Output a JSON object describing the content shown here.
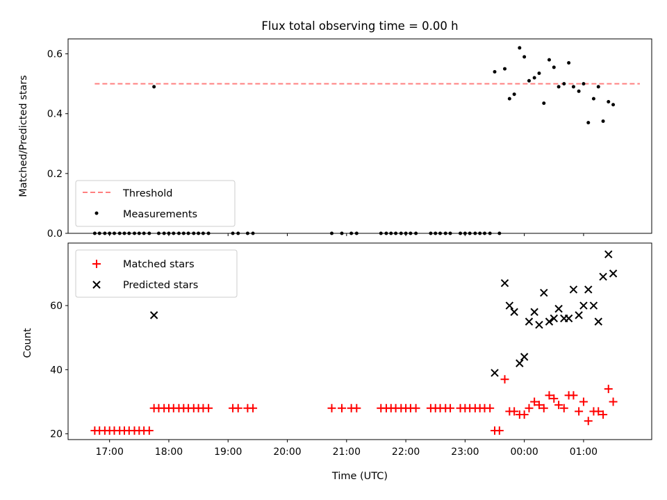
{
  "chart_data": [
    {
      "type": "scatter",
      "title": "Flux total observing time = 0.00 h",
      "xlabel": "",
      "ylabel": "Matched/Predicted stars",
      "ylim": [
        0,
        0.65
      ],
      "yticks": [
        "0.0",
        "0.2",
        "0.4",
        "0.6"
      ],
      "xlim_hours": [
        16.3,
        26.15
      ],
      "legend_position": "lower-left",
      "threshold": {
        "name": "Threshold",
        "value": 0.5,
        "x_start": 16.75,
        "x_end": 25.95,
        "color": "#ff7f7f"
      },
      "series": [
        {
          "name": "Measurements",
          "color": "#000000",
          "x": [
            16.75,
            16.83,
            16.92,
            17.0,
            17.08,
            17.17,
            17.25,
            17.33,
            17.42,
            17.5,
            17.58,
            17.67,
            17.75,
            17.83,
            17.92,
            18.0,
            18.08,
            18.17,
            18.25,
            18.33,
            18.42,
            18.5,
            18.58,
            18.67,
            19.08,
            19.17,
            19.33,
            19.42,
            20.75,
            20.92,
            21.08,
            21.17,
            21.58,
            21.67,
            21.75,
            21.83,
            21.92,
            22.0,
            22.08,
            22.17,
            22.42,
            22.5,
            22.58,
            22.67,
            22.75,
            22.92,
            23.0,
            23.08,
            23.17,
            23.25,
            23.33,
            23.42,
            23.58,
            23.5,
            23.67,
            23.75,
            23.83,
            23.92,
            24.0,
            24.08,
            24.17,
            24.25,
            24.33,
            24.42,
            24.5,
            24.58,
            24.67,
            24.75,
            24.83,
            24.92,
            25.0,
            25.08,
            25.17,
            25.25,
            25.33,
            25.42,
            25.5
          ],
          "y": [
            0,
            0,
            0,
            0,
            0,
            0,
            0,
            0,
            0,
            0,
            0,
            0,
            0.49,
            0,
            0,
            0,
            0,
            0,
            0,
            0,
            0,
            0,
            0,
            0,
            0,
            0,
            0,
            0,
            0,
            0,
            0,
            0,
            0,
            0,
            0,
            0,
            0,
            0,
            0,
            0,
            0,
            0,
            0,
            0,
            0,
            0,
            0,
            0,
            0,
            0,
            0,
            0,
            0,
            0.54,
            0.55,
            0.45,
            0.465,
            0.62,
            0.59,
            0.51,
            0.52,
            0.535,
            0.435,
            0.58,
            0.555,
            0.49,
            0.5,
            0.57,
            0.49,
            0.475,
            0.5,
            0.37,
            0.45,
            0.49,
            0.375,
            0.44,
            0.43
          ]
        }
      ]
    },
    {
      "type": "scatter",
      "title": "",
      "xlabel": "Time (UTC)",
      "ylabel": "Count",
      "ylim": [
        18.2,
        79.5
      ],
      "yticks": [
        "20",
        "40",
        "60"
      ],
      "xlim_hours": [
        16.3,
        26.15
      ],
      "xticks": [
        "17:00",
        "18:00",
        "19:00",
        "20:00",
        "21:00",
        "22:00",
        "23:00",
        "00:00",
        "01:00"
      ],
      "legend_position": "upper-left",
      "series": [
        {
          "name": "Matched stars",
          "color": "#ff0000",
          "x": [
            16.75,
            16.83,
            16.92,
            17.0,
            17.08,
            17.17,
            17.25,
            17.33,
            17.42,
            17.5,
            17.58,
            17.67,
            17.75,
            17.83,
            17.92,
            18.0,
            18.08,
            18.17,
            18.25,
            18.33,
            18.42,
            18.5,
            18.58,
            18.67,
            19.08,
            19.17,
            19.33,
            19.42,
            20.75,
            20.92,
            21.08,
            21.17,
            21.58,
            21.67,
            21.75,
            21.83,
            21.92,
            22.0,
            22.08,
            22.17,
            22.42,
            22.5,
            22.58,
            22.67,
            22.75,
            22.92,
            23.0,
            23.08,
            23.17,
            23.25,
            23.33,
            23.42,
            23.5,
            23.58,
            23.67,
            23.75,
            23.83,
            23.92,
            24.0,
            24.08,
            24.17,
            24.25,
            24.33,
            24.42,
            24.5,
            24.58,
            24.67,
            24.75,
            24.83,
            24.92,
            25.0,
            25.08,
            25.17,
            25.25,
            25.33,
            25.42,
            25.5
          ],
          "y": [
            21,
            21,
            21,
            21,
            21,
            21,
            21,
            21,
            21,
            21,
            21,
            21,
            28,
            28,
            28,
            28,
            28,
            28,
            28,
            28,
            28,
            28,
            28,
            28,
            28,
            28,
            28,
            28,
            28,
            28,
            28,
            28,
            28,
            28,
            28,
            28,
            28,
            28,
            28,
            28,
            28,
            28,
            28,
            28,
            28,
            28,
            28,
            28,
            28,
            28,
            28,
            28,
            21,
            21,
            37,
            27,
            27,
            26,
            26,
            28,
            30,
            29,
            28,
            32,
            31,
            29,
            28,
            32,
            32,
            27,
            30,
            24,
            27,
            27,
            26,
            34,
            30
          ]
        },
        {
          "name": "Predicted stars",
          "color": "#000000",
          "x": [
            17.75,
            23.5,
            23.67,
            23.75,
            23.83,
            23.92,
            24.0,
            24.08,
            24.17,
            24.25,
            24.33,
            24.42,
            24.5,
            24.58,
            24.67,
            24.75,
            24.83,
            24.92,
            25.0,
            25.08,
            25.17,
            25.25,
            25.33,
            25.42,
            25.5
          ],
          "y": [
            57,
            39,
            67,
            60,
            58,
            42,
            44,
            55,
            58,
            54,
            64,
            55,
            56,
            59,
            56,
            56,
            65,
            57,
            60,
            65,
            60,
            55,
            69,
            76,
            70
          ]
        }
      ]
    }
  ]
}
